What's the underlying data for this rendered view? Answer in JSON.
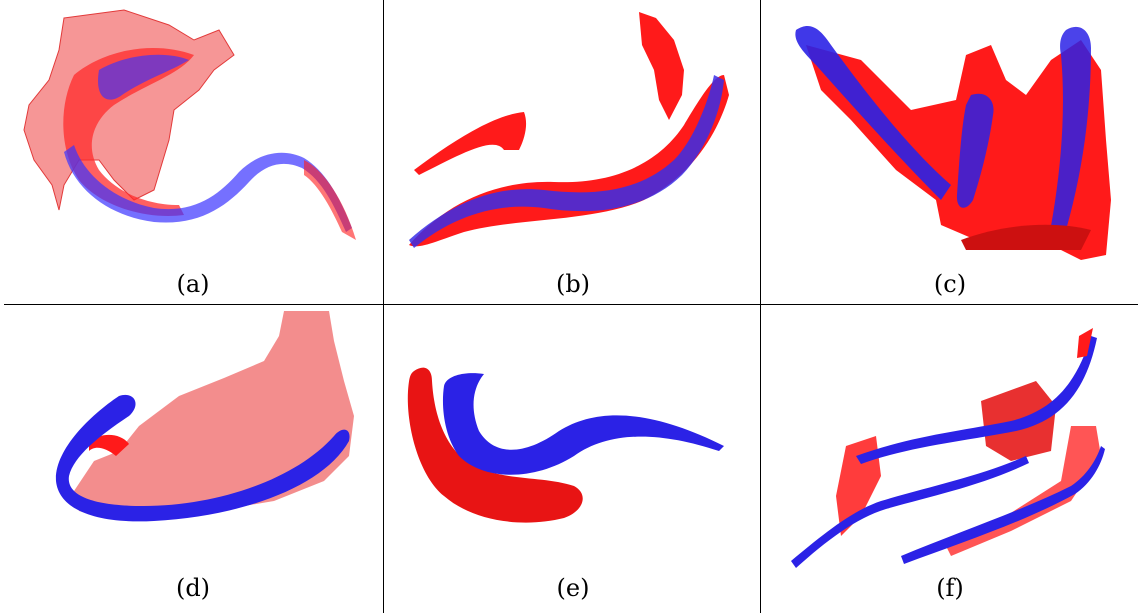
{
  "panels": [
    {
      "label": "(a)"
    },
    {
      "label": "(b)"
    },
    {
      "label": "(c)"
    },
    {
      "label": "(d)"
    },
    {
      "label": "(e)"
    },
    {
      "label": "(f)"
    }
  ],
  "colors": {
    "red_surface": "#ff1a1a",
    "translucent_red_surface": "#f26a6a",
    "blue_surface": "#2b22e6",
    "dark_blue_shade": "#1a0d8a",
    "grid_line": "#000000"
  }
}
